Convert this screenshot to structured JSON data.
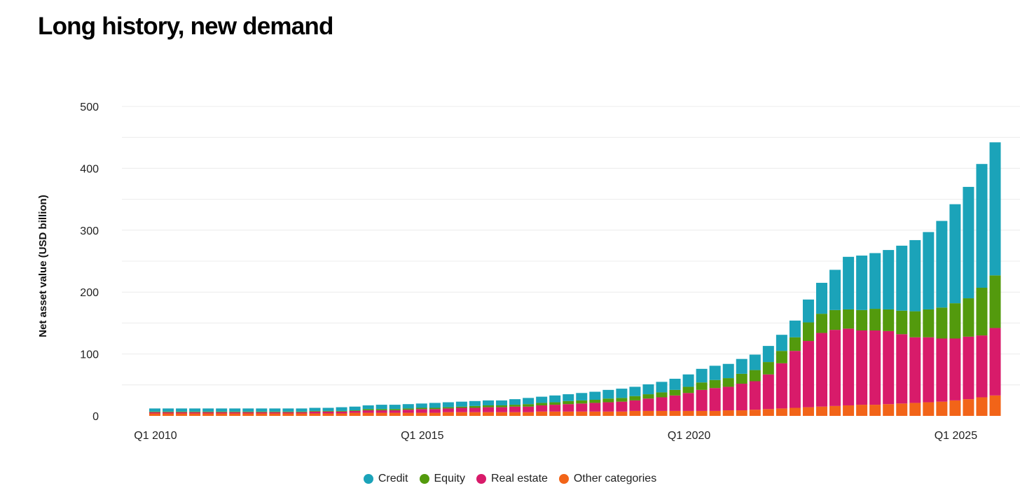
{
  "title": "Long history, new demand",
  "colors": {
    "Credit": "#1ba3b9",
    "Equity": "#539a0d",
    "Real estate": "#d81b6a",
    "Other categories": "#f26418",
    "grid": "#ececec"
  },
  "legend": [
    {
      "label": "Credit",
      "color": "#1ba3b9"
    },
    {
      "label": "Equity",
      "color": "#539a0d"
    },
    {
      "label": "Real estate",
      "color": "#d81b6a"
    },
    {
      "label": "Other categories",
      "color": "#f26418"
    }
  ],
  "chart_data": {
    "type": "bar",
    "stacked": true,
    "title": "Long history, new demand",
    "xlabel": "",
    "ylabel": "Net asset value (USD billion)",
    "ylim": [
      0,
      500
    ],
    "yticks": [
      0,
      100,
      200,
      300,
      400,
      500
    ],
    "x_tick_labels": [
      {
        "index": 0,
        "label": "Q1 2010"
      },
      {
        "index": 20,
        "label": "Q1 2015"
      },
      {
        "index": 40,
        "label": "Q1 2020"
      },
      {
        "index": 60,
        "label": "Q1 2025"
      }
    ],
    "categories": [
      "Q1 2010",
      "Q2 2010",
      "Q3 2010",
      "Q4 2010",
      "Q1 2011",
      "Q2 2011",
      "Q3 2011",
      "Q4 2011",
      "Q1 2012",
      "Q2 2012",
      "Q3 2012",
      "Q4 2012",
      "Q1 2013",
      "Q2 2013",
      "Q3 2013",
      "Q4 2013",
      "Q1 2014",
      "Q2 2014",
      "Q3 2014",
      "Q4 2014",
      "Q1 2015",
      "Q2 2015",
      "Q3 2015",
      "Q4 2015",
      "Q1 2016",
      "Q2 2016",
      "Q3 2016",
      "Q4 2016",
      "Q1 2017",
      "Q2 2017",
      "Q3 2017",
      "Q4 2017",
      "Q1 2018",
      "Q2 2018",
      "Q3 2018",
      "Q4 2018",
      "Q1 2019",
      "Q2 2019",
      "Q3 2019",
      "Q4 2019",
      "Q1 2020",
      "Q2 2020",
      "Q3 2020",
      "Q4 2020",
      "Q1 2021",
      "Q2 2021",
      "Q3 2021",
      "Q4 2021",
      "Q1 2022",
      "Q2 2022",
      "Q3 2022",
      "Q4 2022",
      "Q1 2023",
      "Q2 2023",
      "Q3 2023",
      "Q4 2023",
      "Q1 2024",
      "Q2 2024",
      "Q3 2024",
      "Q4 2024",
      "Q1 2025",
      "Q2 2025",
      "Q3 2025",
      "Q4 2025"
    ],
    "series": [
      {
        "name": "Other categories",
        "color": "#f26418",
        "values": [
          4,
          4,
          4,
          4,
          4,
          4,
          4,
          4,
          4,
          4,
          4,
          4,
          4,
          4,
          4,
          5,
          5,
          5,
          5,
          5,
          5,
          5,
          6,
          6,
          6,
          6,
          6,
          6,
          6,
          7,
          7,
          7,
          7,
          7,
          7,
          7,
          8,
          8,
          8,
          8,
          8,
          8,
          8,
          9,
          9,
          10,
          11,
          12,
          13,
          14,
          15,
          16,
          17,
          18,
          18,
          19,
          20,
          21,
          22,
          23,
          25,
          27,
          30,
          33
        ]
      },
      {
        "name": "Real estate",
        "color": "#d81b6a",
        "values": [
          2,
          2,
          2,
          2,
          2,
          2,
          2,
          2,
          2,
          2,
          2,
          2,
          3,
          3,
          3,
          3,
          4,
          4,
          4,
          5,
          6,
          6,
          6,
          7,
          7,
          8,
          8,
          9,
          9,
          10,
          11,
          12,
          13,
          14,
          15,
          16,
          17,
          20,
          22,
          25,
          29,
          34,
          37,
          38,
          43,
          46,
          56,
          73,
          92,
          107,
          119,
          123,
          124,
          120,
          120,
          118,
          112,
          106,
          105,
          102,
          100,
          101,
          100,
          109
        ]
      },
      {
        "name": "Equity",
        "color": "#539a0d",
        "values": [
          1,
          1,
          1,
          1,
          1,
          1,
          1,
          1,
          1,
          1,
          1,
          1,
          1,
          1,
          1,
          1,
          2,
          2,
          2,
          2,
          2,
          2,
          2,
          2,
          3,
          3,
          3,
          3,
          4,
          4,
          4,
          5,
          5,
          5,
          6,
          6,
          7,
          7,
          8,
          9,
          10,
          12,
          13,
          14,
          16,
          18,
          20,
          20,
          22,
          30,
          31,
          32,
          31,
          33,
          35,
          35,
          38,
          42,
          45,
          50,
          57,
          62,
          77,
          85
        ]
      },
      {
        "name": "Credit",
        "color": "#1ba3b9",
        "values": [
          5,
          5,
          5,
          5,
          5,
          5,
          5,
          5,
          5,
          5,
          5,
          5,
          5,
          5,
          6,
          6,
          6,
          7,
          7,
          7,
          7,
          8,
          8,
          8,
          8,
          8,
          8,
          9,
          10,
          10,
          11,
          11,
          12,
          13,
          14,
          15,
          15,
          16,
          17,
          18,
          20,
          22,
          23,
          23,
          24,
          25,
          26,
          26,
          27,
          37,
          50,
          65,
          85,
          88,
          90,
          96,
          105,
          115,
          125,
          140,
          160,
          180,
          200,
          215
        ]
      }
    ]
  }
}
